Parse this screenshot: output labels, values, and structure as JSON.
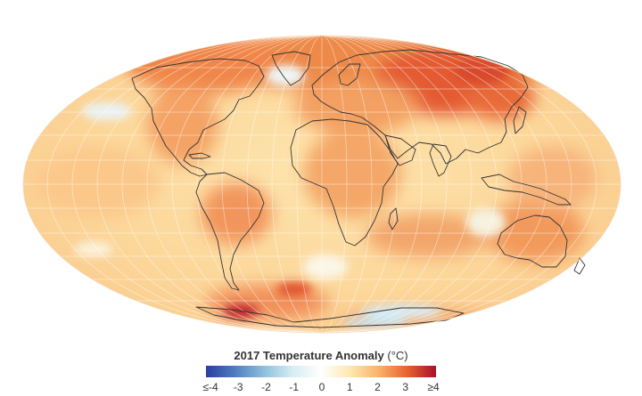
{
  "legend": {
    "title": "2017 Temperature Anomaly",
    "unit": "(°C)",
    "ticks": [
      "≤-4",
      "-3",
      "-2",
      "-1",
      "0",
      "1",
      "2",
      "3",
      "≥4"
    ],
    "colors": [
      "#2c3e9e",
      "#4f7cc0",
      "#8ebfdc",
      "#d6ecf3",
      "#ffffff",
      "#fde9b0",
      "#f9b36b",
      "#e7622f",
      "#a8102a"
    ]
  },
  "map": {
    "projection": "Mollweide",
    "land_outline_color": "#333333",
    "graticule_color": "#ffffff"
  }
}
